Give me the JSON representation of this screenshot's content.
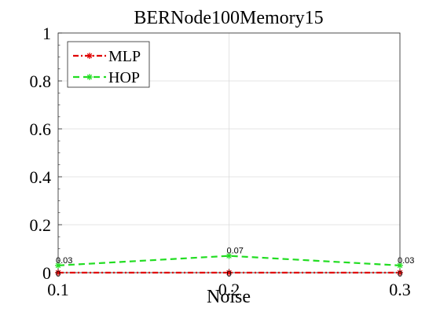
{
  "chart_data": {
    "type": "line",
    "title": "BERNode100Memory15",
    "xlabel": "Noise",
    "ylabel": "",
    "x": [
      0.1,
      0.2,
      0.3
    ],
    "x_tick_labels": [
      "0.1",
      "0.2",
      "0.3"
    ],
    "y_tick_labels": [
      "0",
      "0.2",
      "0.4",
      "0.6",
      "0.8",
      "1"
    ],
    "xlim": [
      0.1,
      0.3
    ],
    "ylim": [
      0,
      1
    ],
    "grid": true,
    "legend_position": "top-left",
    "series": [
      {
        "name": "MLP",
        "values": [
          0,
          0,
          0
        ],
        "labels": [
          "0",
          "0",
          "0"
        ],
        "color": "#e00000",
        "style": "dash-dot",
        "marker": "star"
      },
      {
        "name": "HOP",
        "values": [
          0.03,
          0.07,
          0.03
        ],
        "labels": [
          "0.03",
          "0.07",
          "0.03"
        ],
        "color": "#22dd22",
        "style": "dashed",
        "marker": "star"
      }
    ]
  }
}
